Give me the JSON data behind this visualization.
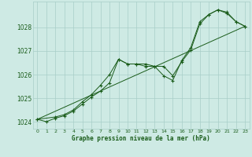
{
  "xlabel": "Graphe pression niveau de la mer (hPa)",
  "background_color": "#ceeae4",
  "grid_color": "#a8cec8",
  "line_color": "#1a5c1a",
  "marker_color": "#1a5c1a",
  "tick_label_color": "#1a5c1a",
  "axis_label_color": "#1a5c1a",
  "ylim": [
    1023.7,
    1029.1
  ],
  "xlim": [
    -0.5,
    23.5
  ],
  "yticks": [
    1024,
    1025,
    1026,
    1027,
    1028
  ],
  "xtick_labels": [
    "0",
    "1",
    "2",
    "3",
    "4",
    "5",
    "6",
    "7",
    "8",
    "9",
    "10",
    "11",
    "12",
    "13",
    "14",
    "15",
    "16",
    "17",
    "18",
    "19",
    "20",
    "21",
    "22",
    "23"
  ],
  "series1_x": [
    0,
    1,
    2,
    3,
    4,
    5,
    6,
    7,
    8,
    9,
    10,
    11,
    12,
    13,
    14,
    15,
    16,
    17,
    18,
    19,
    20,
    21,
    22,
    23
  ],
  "series1_y": [
    1024.1,
    1024.0,
    1024.15,
    1024.25,
    1024.45,
    1024.75,
    1025.05,
    1025.3,
    1025.65,
    1026.65,
    1026.45,
    1026.45,
    1026.35,
    1026.35,
    1026.35,
    1025.95,
    1026.55,
    1027.05,
    1028.15,
    1028.55,
    1028.75,
    1028.65,
    1028.25,
    1028.05
  ],
  "series2_x": [
    0,
    2,
    3,
    4,
    5,
    6,
    7,
    8,
    9,
    10,
    11,
    12,
    13,
    14,
    15,
    16,
    17,
    18,
    19,
    20,
    21,
    22,
    23
  ],
  "series2_y": [
    1024.1,
    1024.2,
    1024.3,
    1024.5,
    1024.85,
    1025.15,
    1025.55,
    1026.0,
    1026.65,
    1026.45,
    1026.45,
    1026.45,
    1026.35,
    1025.95,
    1025.75,
    1026.6,
    1027.15,
    1028.25,
    1028.55,
    1028.75,
    1028.6,
    1028.25,
    1028.05
  ],
  "trend_x": [
    0,
    23
  ],
  "trend_y": [
    1024.1,
    1028.05
  ]
}
